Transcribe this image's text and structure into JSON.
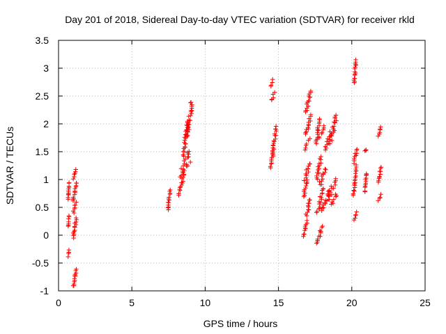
{
  "chart_data": {
    "type": "scatter",
    "title": "Day 201 of 2018, Sidereal Day-to-day VTEC variation (SDTVAR) for receiver rkld",
    "xlabel": "GPS time / hours",
    "ylabel": "SDTVAR / TECUs",
    "xlim": [
      0,
      25
    ],
    "ylim": [
      -1,
      3.5
    ],
    "xticks": [
      0,
      5,
      10,
      15,
      20,
      25
    ],
    "yticks": [
      -1,
      -0.5,
      0,
      0.5,
      1,
      1.5,
      2,
      2.5,
      3,
      3.5
    ],
    "grid": true,
    "marker": "+",
    "series_color": "#ff0000",
    "series": [
      {
        "name": "SDTVAR",
        "segments": [
          {
            "x": [
              0.65,
              0.72
            ],
            "y": [
              -0.38,
              -0.28
            ]
          },
          {
            "x": [
              0.65,
              0.72
            ],
            "y": [
              0.15,
              0.35
            ]
          },
          {
            "x": [
              0.65,
              0.72
            ],
            "y": [
              0.65,
              0.95
            ]
          },
          {
            "x": [
              1.0,
              1.22
            ],
            "y": [
              -0.92,
              -0.6
            ]
          },
          {
            "x": [
              1.0,
              1.22
            ],
            "y": [
              -0.05,
              0.3
            ]
          },
          {
            "x": [
              1.0,
              1.22
            ],
            "y": [
              0.4,
              0.58
            ]
          },
          {
            "x": [
              1.0,
              1.22
            ],
            "y": [
              0.6,
              0.95
            ]
          },
          {
            "x": [
              1.0,
              1.22
            ],
            "y": [
              1.02,
              1.18
            ]
          },
          {
            "x": [
              7.45,
              7.62
            ],
            "y": [
              0.45,
              0.82
            ]
          },
          {
            "x": [
              8.2,
              8.55
            ],
            "y": [
              0.7,
              1.1
            ]
          },
          {
            "x": [
              8.3,
              8.9
            ],
            "y": [
              1.05,
              1.5
            ]
          },
          {
            "x": [
              8.5,
              9.05
            ],
            "y": [
              1.2,
              1.3
            ]
          },
          {
            "x": [
              8.5,
              8.8
            ],
            "y": [
              1.4,
              2.05
            ]
          },
          {
            "x": [
              8.75,
              9.1
            ],
            "y": [
              1.75,
              2.4
            ]
          },
          {
            "x": [
              14.45,
              14.6
            ],
            "y": [
              2.68,
              2.78
            ]
          },
          {
            "x": [
              14.5,
              14.75
            ],
            "y": [
              2.42,
              2.55
            ]
          },
          {
            "x": [
              14.45,
              14.65
            ],
            "y": [
              1.22,
              1.5
            ]
          },
          {
            "x": [
              14.6,
              14.85
            ],
            "y": [
              1.45,
              1.95
            ]
          },
          {
            "x": [
              16.7,
              16.95
            ],
            "y": [
              -0.02,
              0.25
            ]
          },
          {
            "x": [
              16.85,
              17.2
            ],
            "y": [
              0.35,
              0.65
            ]
          },
          {
            "x": [
              16.7,
              16.95
            ],
            "y": [
              0.7,
              1.0
            ]
          },
          {
            "x": [
              16.75,
              17.15
            ],
            "y": [
              1.0,
              1.3
            ]
          },
          {
            "x": [
              16.75,
              17.15
            ],
            "y": [
              1.55,
              1.72
            ]
          },
          {
            "x": [
              16.85,
              17.2
            ],
            "y": [
              1.8,
              2.15
            ]
          },
          {
            "x": [
              16.85,
              17.2
            ],
            "y": [
              2.2,
              2.6
            ]
          },
          {
            "x": [
              17.6,
              18.0
            ],
            "y": [
              -0.15,
              0.15
            ]
          },
          {
            "x": [
              17.6,
              18.05
            ],
            "y": [
              0.4,
              0.85
            ]
          },
          {
            "x": [
              17.6,
              17.9
            ],
            "y": [
              1.0,
              1.4
            ]
          },
          {
            "x": [
              17.55,
              17.8
            ],
            "y": [
              1.65,
              2.1
            ]
          },
          {
            "x": [
              17.75,
              18.1
            ],
            "y": [
              1.75,
              1.95
            ]
          },
          {
            "x": [
              17.8,
              18.3
            ],
            "y": [
              0.9,
              1.2
            ]
          },
          {
            "x": [
              17.95,
              18.6
            ],
            "y": [
              0.45,
              0.8
            ]
          },
          {
            "x": [
              18.3,
              18.9
            ],
            "y": [
              0.6,
              1.0
            ]
          },
          {
            "x": [
              18.2,
              18.6
            ],
            "y": [
              1.55,
              1.85
            ]
          },
          {
            "x": [
              18.5,
              18.95
            ],
            "y": [
              1.65,
              2.15
            ]
          },
          {
            "x": [
              18.6,
              18.95
            ],
            "y": [
              0.55,
              0.75
            ]
          },
          {
            "x": [
              20.15,
              20.3
            ],
            "y": [
              2.72,
              3.15
            ]
          },
          {
            "x": [
              20.15,
              20.35
            ],
            "y": [
              0.28,
              0.42
            ]
          },
          {
            "x": [
              20.1,
              20.3
            ],
            "y": [
              0.7,
              1.25
            ]
          },
          {
            "x": [
              20.15,
              20.35
            ],
            "y": [
              1.3,
              1.55
            ]
          },
          {
            "x": [
              20.9,
              21.0
            ],
            "y": [
              0.78,
              1.12
            ]
          },
          {
            "x": [
              20.9,
              21.0
            ],
            "y": [
              1.52,
              1.53
            ]
          },
          {
            "x": [
              21.8,
              22.0
            ],
            "y": [
              0.62,
              0.72
            ]
          },
          {
            "x": [
              21.8,
              22.0
            ],
            "y": [
              0.95,
              1.22
            ]
          },
          {
            "x": [
              21.8,
              22.0
            ],
            "y": [
              1.78,
              1.95
            ]
          }
        ]
      }
    ]
  }
}
